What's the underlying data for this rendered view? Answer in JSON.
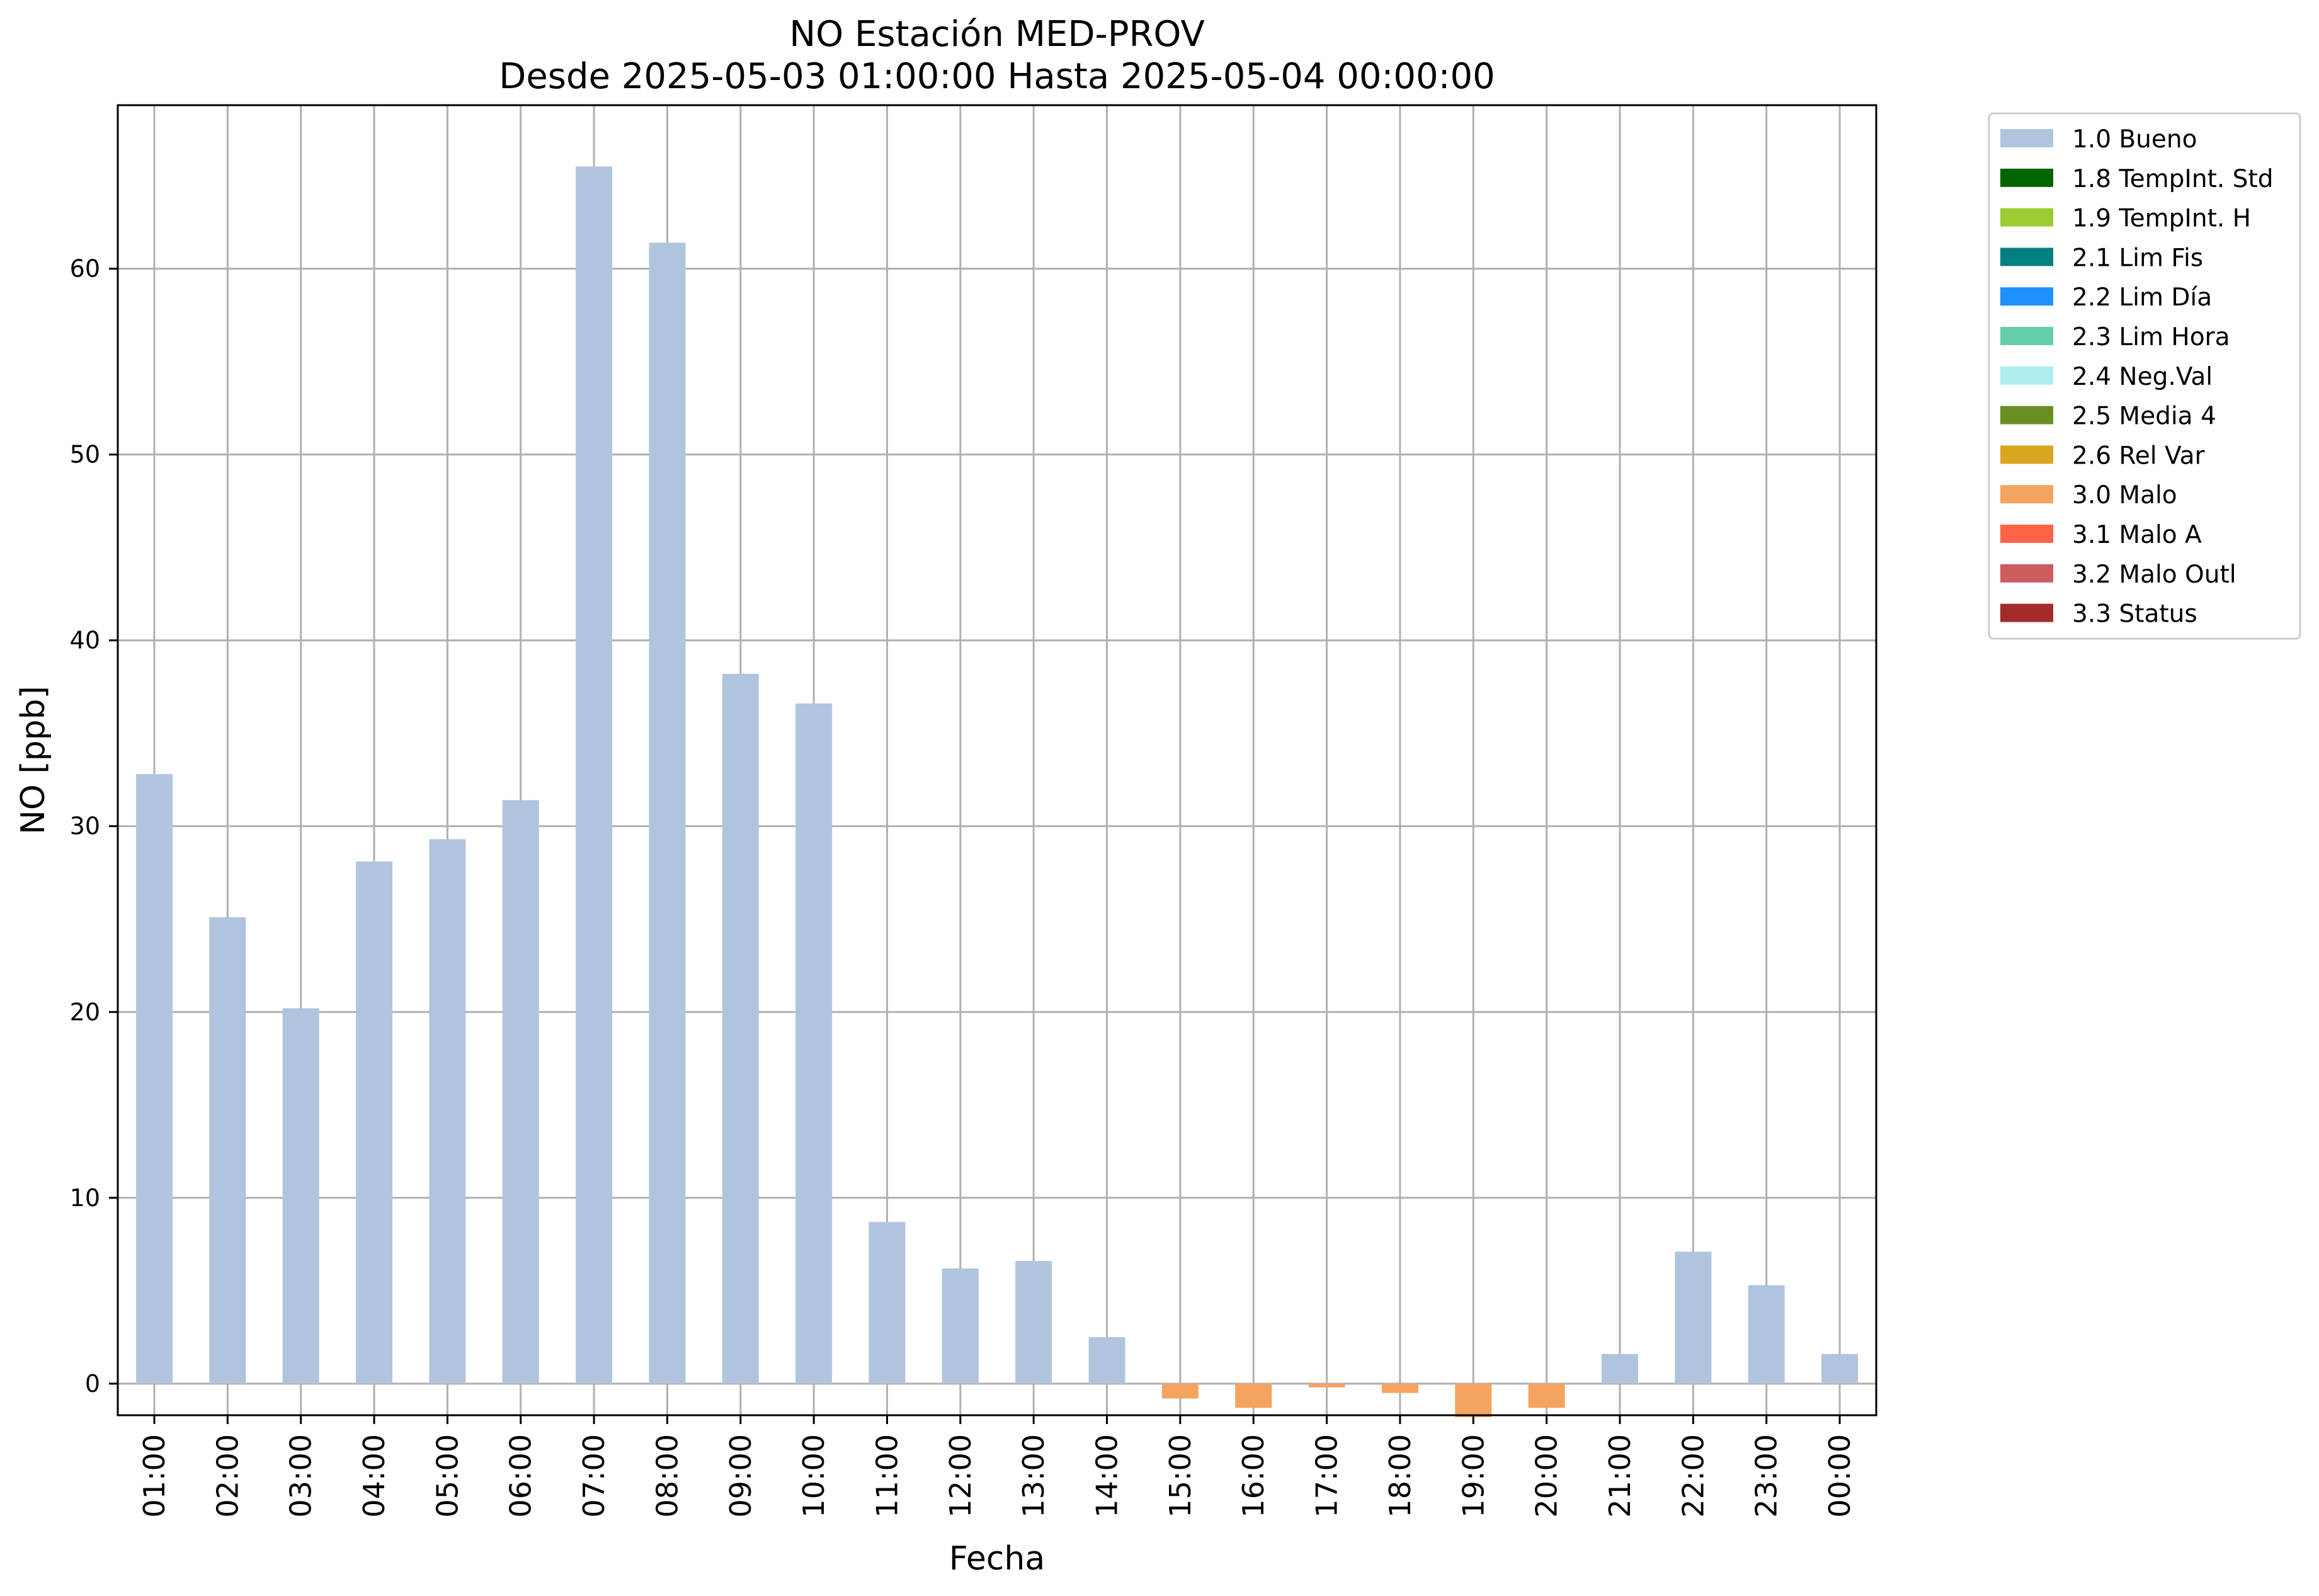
{
  "chart_data": {
    "type": "bar",
    "title": "NO Estación MED-PROV",
    "subtitle": "Desde 2025-05-03 01:00:00 Hasta 2025-05-04 00:00:00",
    "xlabel": "Fecha",
    "ylabel": "NO [ppb]",
    "ylim": [
      -1.7,
      68.8
    ],
    "yticks": [
      0,
      10,
      20,
      30,
      40,
      50,
      60
    ],
    "grid": true,
    "legend_placement": "outside-right",
    "categories": [
      "01:00",
      "02:00",
      "03:00",
      "04:00",
      "05:00",
      "06:00",
      "07:00",
      "08:00",
      "09:00",
      "10:00",
      "11:00",
      "12:00",
      "13:00",
      "14:00",
      "15:00",
      "16:00",
      "17:00",
      "18:00",
      "19:00",
      "20:00",
      "21:00",
      "22:00",
      "23:00",
      "00:00"
    ],
    "values": [
      32.8,
      25.1,
      20.2,
      28.1,
      29.3,
      31.4,
      65.5,
      61.4,
      38.2,
      36.6,
      8.7,
      6.2,
      6.6,
      2.5,
      -0.8,
      -1.3,
      -0.2,
      -0.5,
      -1.8,
      -1.3,
      1.6,
      7.1,
      5.3,
      1.6
    ],
    "quality_flags": [
      "1.0 Bueno",
      "1.0 Bueno",
      "1.0 Bueno",
      "1.0 Bueno",
      "1.0 Bueno",
      "1.0 Bueno",
      "1.0 Bueno",
      "1.0 Bueno",
      "1.0 Bueno",
      "1.0 Bueno",
      "1.0 Bueno",
      "1.0 Bueno",
      "1.0 Bueno",
      "1.0 Bueno",
      "3.0 Malo",
      "3.0 Malo",
      "3.0 Malo",
      "3.0 Malo",
      "3.0 Malo",
      "3.0 Malo",
      "1.0 Bueno",
      "1.0 Bueno",
      "1.0 Bueno",
      "1.0 Bueno"
    ],
    "legend": [
      {
        "label": "1.0 Bueno",
        "color": "#b0c4de"
      },
      {
        "label": "1.8 TempInt. Std",
        "color": "#006400"
      },
      {
        "label": "1.9 TempInt. H",
        "color": "#9acd32"
      },
      {
        "label": "2.1 Lim Fis",
        "color": "#008080"
      },
      {
        "label": "2.2 Lim Día",
        "color": "#1e90ff"
      },
      {
        "label": "2.3 Lim Hora",
        "color": "#66cdaa"
      },
      {
        "label": "2.4 Neg.Val",
        "color": "#afeeee"
      },
      {
        "label": "2.5 Media 4",
        "color": "#6b8e23"
      },
      {
        "label": "2.6 Rel Var",
        "color": "#daa520"
      },
      {
        "label": "3.0 Malo",
        "color": "#f4a460"
      },
      {
        "label": "3.1 Malo A",
        "color": "#ff6347"
      },
      {
        "label": "3.2 Malo Outl",
        "color": "#cd5c5c"
      },
      {
        "label": "3.3 Status",
        "color": "#a52a2a"
      }
    ],
    "colors": {
      "grid": "#b0b0b0",
      "axes": "#000000"
    }
  }
}
